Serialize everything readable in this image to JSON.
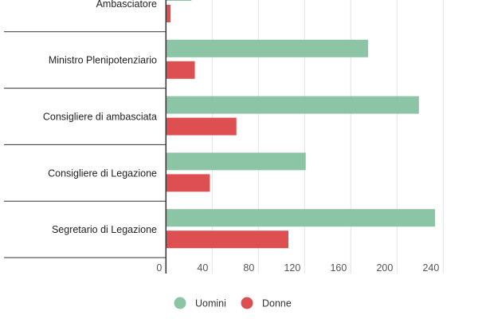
{
  "chart_data": {
    "type": "bar",
    "orientation": "horizontal",
    "categories": [
      "Ambasciatore",
      "Ministro Plenipotenziario",
      "Consigliere di ambasciata",
      "Consigliere di Legazione",
      "Segretario di Legazione"
    ],
    "series": [
      {
        "name": "Uomini",
        "color": "#8cc4a6",
        "values": [
          22,
          175,
          219,
          121,
          233
        ]
      },
      {
        "name": "Donne",
        "color": "#de4f52",
        "values": [
          4,
          25,
          61,
          38,
          106
        ]
      }
    ],
    "xticks": [
      "0",
      "40",
      "80",
      "120",
      "160",
      "200",
      "240"
    ],
    "xlim": [
      0,
      240
    ],
    "grid": true,
    "legend_position": "bottom"
  }
}
